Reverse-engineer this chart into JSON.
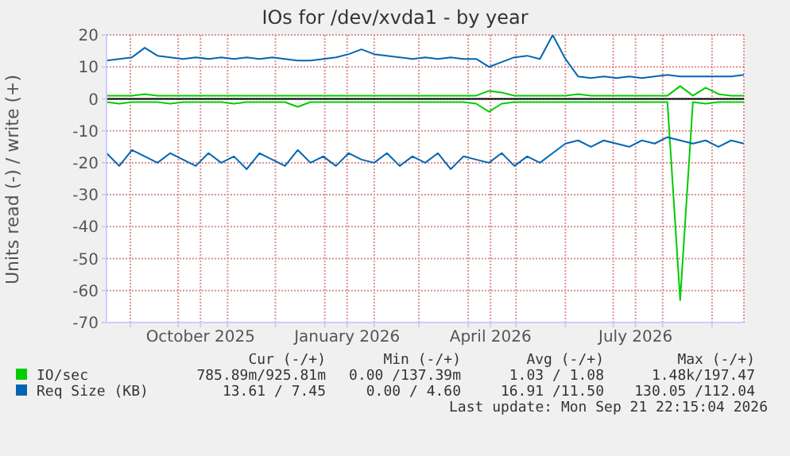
{
  "chart_data": {
    "type": "line",
    "title": "IOs for /dev/xvda1 - by year",
    "ylabel": "Units read (-) / write (+)",
    "x": [
      "2025-08-17",
      "2025-08-25",
      "2025-09-02",
      "2025-09-10",
      "2025-09-18",
      "2025-09-26",
      "2025-10-04",
      "2025-10-12",
      "2025-10-20",
      "2025-10-28",
      "2025-11-05",
      "2025-11-13",
      "2025-11-21",
      "2025-11-29",
      "2025-12-07",
      "2025-12-15",
      "2025-12-23",
      "2025-12-31",
      "2026-01-08",
      "2026-01-16",
      "2026-01-24",
      "2026-02-01",
      "2026-02-09",
      "2026-02-17",
      "2026-02-25",
      "2026-03-05",
      "2026-03-13",
      "2026-03-21",
      "2026-03-29",
      "2026-04-06",
      "2026-04-14",
      "2026-04-22",
      "2026-04-30",
      "2026-05-08",
      "2026-05-16",
      "2026-05-24",
      "2026-06-01",
      "2026-06-09",
      "2026-06-17",
      "2026-06-25",
      "2026-07-03",
      "2026-07-11",
      "2026-07-19",
      "2026-07-27",
      "2026-08-04",
      "2026-08-12",
      "2026-08-20",
      "2026-08-28",
      "2026-09-05",
      "2026-09-13",
      "2026-09-21"
    ],
    "series": [
      {
        "name": "IO/sec",
        "color": "#00cc00",
        "values": [
          1,
          1,
          1,
          1.5,
          1,
          1,
          1,
          1,
          1,
          1,
          1,
          1,
          1,
          1,
          1,
          1,
          1,
          1,
          1,
          1,
          1,
          1,
          1,
          1,
          1,
          1,
          1,
          1,
          1,
          1,
          2.5,
          2,
          1,
          1,
          1,
          1,
          1,
          1.5,
          1,
          1,
          1,
          1,
          1,
          1,
          1,
          4,
          1,
          3.5,
          1.5,
          1,
          1
        ]
      },
      {
        "color": "#00cc00",
        "values": [
          -1,
          -1.5,
          -1,
          -1,
          -1,
          -1.5,
          -1,
          -1,
          -1,
          -1,
          -1.5,
          -1,
          -1,
          -1,
          -1,
          -2.5,
          -1,
          -1,
          -1,
          -1,
          -1,
          -1,
          -1,
          -1,
          -1,
          -1,
          -1,
          -1,
          -1,
          -1.5,
          -4,
          -1.5,
          -1,
          -1,
          -1,
          -1,
          -1,
          -1,
          -1,
          -1,
          -1,
          -1,
          -1,
          -1,
          -1,
          -63,
          -1,
          -1.5,
          -1,
          -1,
          -1
        ]
      },
      {
        "name": "Req Size (KB)",
        "color": "#0066b3",
        "values": [
          12,
          12.5,
          13,
          16,
          13.5,
          13,
          12.5,
          13,
          12.5,
          13,
          12.5,
          13,
          12.5,
          13,
          12.5,
          12,
          12,
          12.5,
          13,
          14,
          15.5,
          14,
          13.5,
          13,
          12.5,
          13,
          12.5,
          13,
          12.5,
          12.5,
          10,
          11.5,
          13,
          13.5,
          12.5,
          20,
          12.5,
          7,
          6.5,
          7,
          6.5,
          7,
          6.5,
          7,
          7.5,
          7,
          7,
          7,
          7,
          7,
          7.5
        ]
      },
      {
        "color": "#0066b3",
        "values": [
          -17,
          -21,
          -16,
          -18,
          -20,
          -17,
          -19,
          -21,
          -17,
          -20,
          -18,
          -22,
          -17,
          -19,
          -21,
          -16,
          -20,
          -18,
          -21,
          -17,
          -19,
          -20,
          -17,
          -21,
          -18,
          -20,
          -17,
          -22,
          -18,
          -19,
          -20,
          -17,
          -21,
          -18,
          -20,
          -17,
          -14,
          -13,
          -15,
          -13,
          -14,
          -15,
          -13,
          -14,
          -12,
          -13,
          -14,
          -13,
          -15,
          -13,
          -14
        ]
      }
    ],
    "xlim": [
      "2025-08-17",
      "2026-09-21"
    ],
    "xticks": [
      {
        "value": "2025-09-01",
        "label": null
      },
      {
        "value": "2025-10-01",
        "label": null
      },
      {
        "value": "2025-10-15",
        "label": "October 2025"
      },
      {
        "value": "2025-11-01",
        "label": null
      },
      {
        "value": "2025-12-01",
        "label": null
      },
      {
        "value": "2026-01-01",
        "label": null
      },
      {
        "value": "2026-01-15",
        "label": "January 2026"
      },
      {
        "value": "2026-02-01",
        "label": null
      },
      {
        "value": "2026-03-01",
        "label": null
      },
      {
        "value": "2026-04-01",
        "label": null
      },
      {
        "value": "2026-04-15",
        "label": "April 2026"
      },
      {
        "value": "2026-05-01",
        "label": null
      },
      {
        "value": "2026-06-01",
        "label": null
      },
      {
        "value": "2026-07-01",
        "label": null
      },
      {
        "value": "2026-07-15",
        "label": "July 2026"
      },
      {
        "value": "2026-08-01",
        "label": null
      },
      {
        "value": "2026-09-01",
        "label": null
      }
    ],
    "ylim": [
      -70,
      20
    ],
    "yticks": [
      -70,
      -60,
      -50,
      -40,
      -30,
      -20,
      -10,
      0,
      10,
      20
    ],
    "ref_lines": [
      {
        "axis": "y",
        "value": 0,
        "color": "#000000"
      }
    ],
    "grid": true,
    "legend": "bottom",
    "marker": "none",
    "line_style": "solid",
    "annotations": [
      "Cur (-/+)",
      "Min (-/+)",
      "Avg (-/+)",
      "Max (-/+)",
      "785.89m/925.81m",
      "0.00 /137.39m",
      "1.03 / 1.08",
      "1.48k/197.47",
      "13.61 / 7.45",
      "0.00 / 4.60",
      "16.91 /11.50",
      "130.05 /112.04",
      "Last update: Mon Sep 21 22:15:04 2026"
    ]
  }
}
